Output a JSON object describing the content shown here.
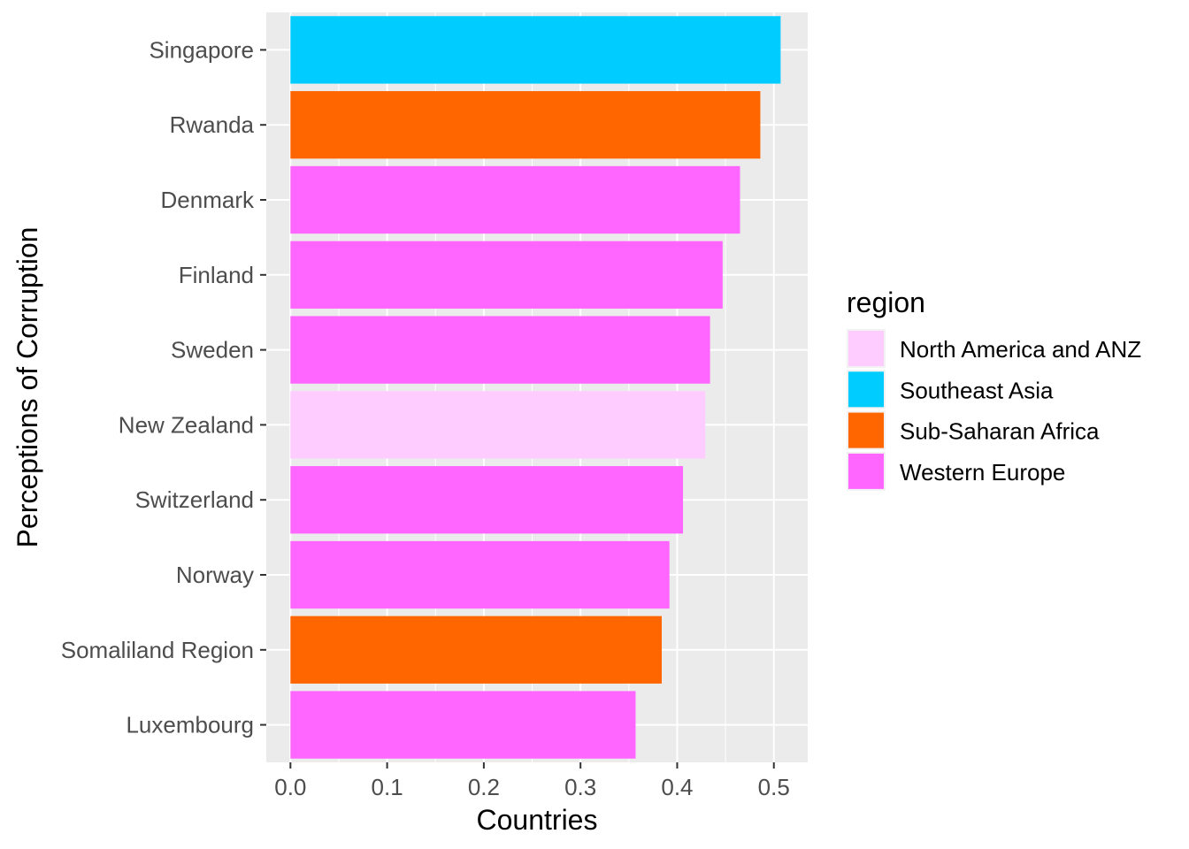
{
  "chart_data": {
    "type": "bar",
    "orientation": "horizontal",
    "xlabel": "Countries",
    "ylabel": "Perceptions of Corruption",
    "xlim": [
      -0.025,
      0.535
    ],
    "xticks": [
      "0.0",
      "0.1",
      "0.2",
      "0.3",
      "0.4",
      "0.5"
    ],
    "grid": true,
    "legend": {
      "title": "region",
      "position": "right",
      "entries": [
        {
          "label": "North America and ANZ",
          "color": "#FFCCFF"
        },
        {
          "label": "Southeast Asia",
          "color": "#00CCFF"
        },
        {
          "label": "Sub-Saharan Africa",
          "color": "#FF6600"
        },
        {
          "label": "Western Europe",
          "color": "#FF66FF"
        }
      ]
    },
    "categories": [
      "Singapore",
      "Rwanda",
      "Denmark",
      "Finland",
      "Sweden",
      "New Zealand",
      "Switzerland",
      "Norway",
      "Somaliland Region",
      "Luxembourg"
    ],
    "values": [
      0.507,
      0.486,
      0.465,
      0.447,
      0.434,
      0.429,
      0.406,
      0.392,
      0.384,
      0.357
    ],
    "regions": [
      "Southeast Asia",
      "Sub-Saharan Africa",
      "Western Europe",
      "Western Europe",
      "Western Europe",
      "North America and ANZ",
      "Western Europe",
      "Western Europe",
      "Sub-Saharan Africa",
      "Western Europe"
    ]
  }
}
